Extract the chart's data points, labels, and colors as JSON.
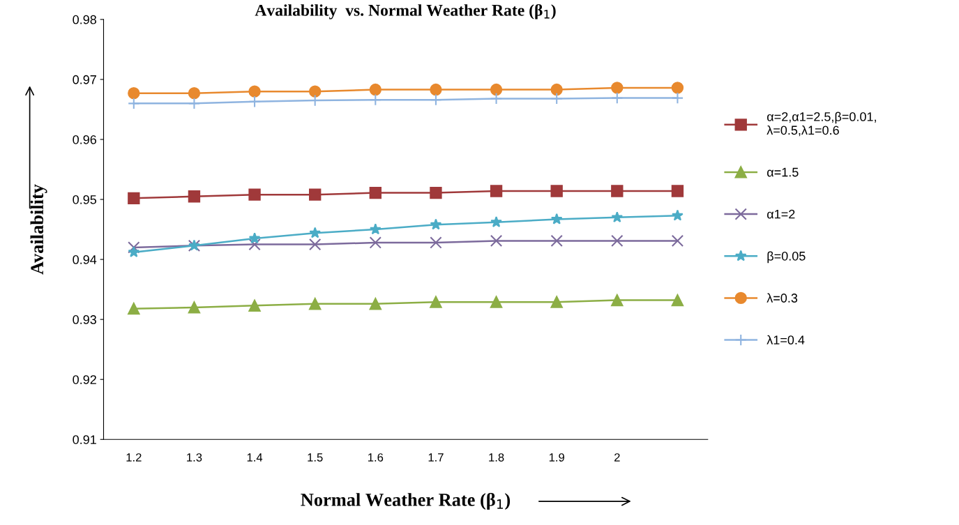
{
  "chart_data": {
    "type": "line",
    "title": "Availability  vs. Normal Weather Rate (β$_{1}$)",
    "xlabel": "Normal Weather Rate (β$_{1}$)",
    "ylabel": "Availability",
    "categories": [
      "1.2",
      "1.3",
      "1.4",
      "1.5",
      "1.6",
      "1.7",
      "1.8",
      "1.9",
      "2",
      null
    ],
    "ylim": [
      0.91,
      0.98
    ],
    "yticks": [
      0.91,
      0.92,
      0.93,
      0.94,
      0.95,
      0.96,
      0.97,
      0.98
    ],
    "grid": false,
    "legend": "right",
    "line_style": "solid",
    "series": [
      {
        "name": "α=2,α1=2.5,β=0.01,\nλ=0.5,λ1=0.6",
        "color": "#a0393a",
        "marker": "square",
        "values": [
          0.9502,
          0.9505,
          0.9508,
          0.9508,
          0.9511,
          0.9511,
          0.9514,
          0.9514,
          0.9514,
          0.9514
        ]
      },
      {
        "name": "α=1.5",
        "color": "#8cae45",
        "marker": "triangle",
        "values": [
          0.9318,
          0.932,
          0.9323,
          0.9326,
          0.9326,
          0.9329,
          0.9329,
          0.9329,
          0.9332,
          0.9332
        ]
      },
      {
        "name": "α1=2",
        "color": "#7c6a9c",
        "marker": "cross",
        "values": [
          0.942,
          0.9423,
          0.9425,
          0.9425,
          0.9428,
          0.9428,
          0.9431,
          0.9431,
          0.9431,
          0.9431
        ]
      },
      {
        "name": "β=0.05",
        "color": "#4bacc6",
        "marker": "star",
        "values": [
          0.9412,
          0.9423,
          0.9435,
          0.9444,
          0.945,
          0.9458,
          0.9462,
          0.9467,
          0.947,
          0.9473
        ]
      },
      {
        "name": "λ=0.3",
        "color": "#e8892e",
        "marker": "circle",
        "values": [
          0.9677,
          0.9677,
          0.968,
          0.968,
          0.9683,
          0.9683,
          0.9683,
          0.9683,
          0.9686,
          0.9686
        ]
      },
      {
        "name": "λ1=0.4",
        "color": "#8fb4e0",
        "marker": "plus",
        "values": [
          0.966,
          0.966,
          0.9663,
          0.9665,
          0.9666,
          0.9666,
          0.9668,
          0.9668,
          0.9669,
          0.9669
        ]
      }
    ]
  }
}
